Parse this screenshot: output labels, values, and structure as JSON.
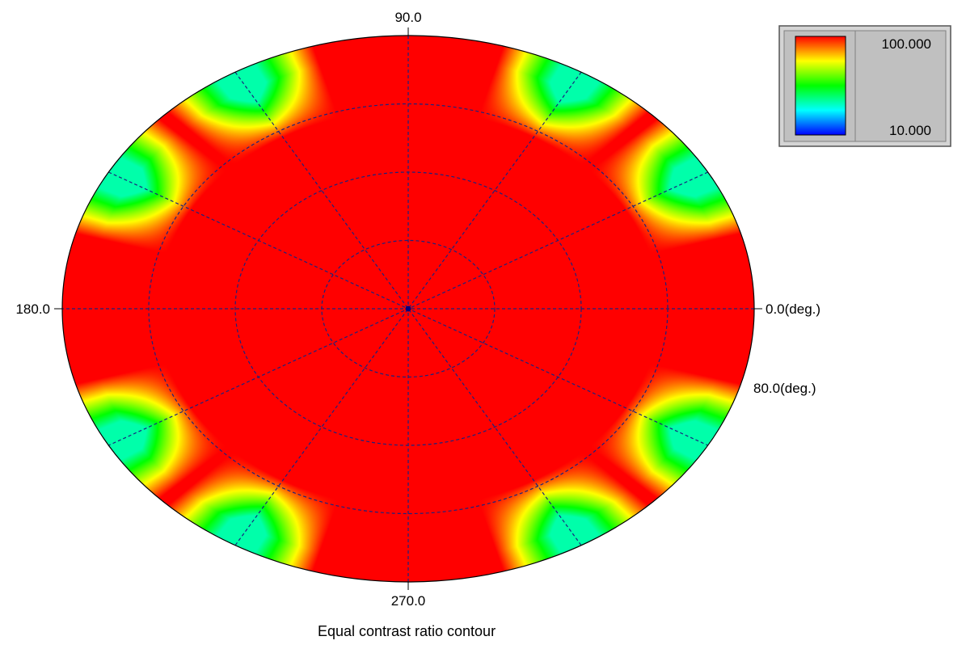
{
  "chart_data": {
    "type": "heatmap",
    "coordinate_system": "polar",
    "title": "Equal contrast ratio contour",
    "angle_labels": {
      "right": "0.0(deg.)",
      "top": "90.0",
      "left": "180.0",
      "bottom": "270.0"
    },
    "radius_label": "80.0(deg.)",
    "radial_max_deg": 80.0,
    "radial_grid_deg": [
      20,
      40,
      60
    ],
    "angular_grid_step_deg": 30,
    "colorbar": {
      "max_label": "100.000",
      "min_label": "10.000",
      "max": 100.0,
      "min": 10.0,
      "colors": [
        "#ff0000",
        "#ffff00",
        "#00ff00",
        "#00ffff",
        "#0000ff"
      ]
    },
    "contrast_pattern": {
      "description_axis": "azimuth_deg",
      "low_contrast_azimuths_deg": [
        30,
        60,
        120,
        150,
        210,
        240,
        300,
        330
      ],
      "high_contrast_region_radius_deg": 58,
      "edge_min_value": 40
    }
  },
  "colors": {
    "grid": "#1a237e",
    "outline": "#000000",
    "background": "#ffffff",
    "legend_panel": "#c0c0c0",
    "center_dot": "#000080"
  }
}
